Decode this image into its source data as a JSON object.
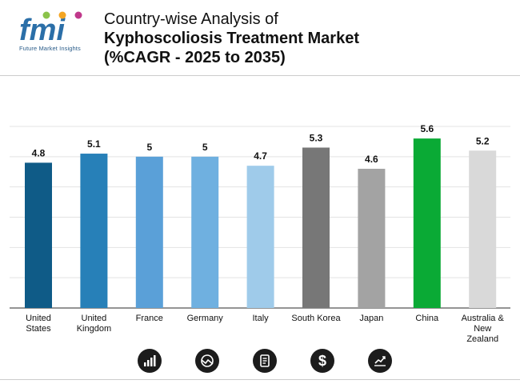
{
  "brand": {
    "logo_text": "fmi",
    "tagline": "Future Market Insights"
  },
  "title": {
    "line1": "Country-wise Analysis of",
    "line2": "Kyphoscoliosis Treatment Market",
    "line3": "(%CAGR - 2025 to 2035)"
  },
  "chart_data": {
    "type": "bar",
    "categories": [
      "United States",
      "United Kingdom",
      "France",
      "Germany",
      "Italy",
      "South Korea",
      "Japan",
      "China",
      "Australia & New Zealand"
    ],
    "category_lines": [
      [
        "United",
        "States"
      ],
      [
        "United",
        "Kingdom"
      ],
      [
        "France"
      ],
      [
        "Germany"
      ],
      [
        "Italy"
      ],
      [
        "South Korea"
      ],
      [
        "Japan"
      ],
      [
        "China"
      ],
      [
        "Australia &",
        "New",
        "Zealand"
      ]
    ],
    "values": [
      4.8,
      5.1,
      5,
      5,
      4.7,
      5.3,
      4.6,
      5.6,
      5.2
    ],
    "value_labels": [
      "4.8",
      "5.1",
      "5",
      "5",
      "4.7",
      "5.3",
      "4.6",
      "5.6",
      "5.2"
    ],
    "colors": [
      "#0f5b87",
      "#2780b8",
      "#5aa0d8",
      "#6fb0e0",
      "#9fcbea",
      "#777777",
      "#a3a3a3",
      "#0aaa35",
      "#d9d9d9"
    ],
    "ylim": [
      0,
      6
    ],
    "grid": true,
    "title": "",
    "xlabel": "",
    "ylabel": ""
  },
  "footer_icons": [
    "bar-chart-icon",
    "globe-trend-icon",
    "report-document-icon",
    "dollar-icon",
    "growth-chart-icon"
  ],
  "colors": {
    "icon_bg": "#1c1c1c",
    "grid": "#e3e3e3",
    "brand_blue": "#2b5d8a"
  }
}
